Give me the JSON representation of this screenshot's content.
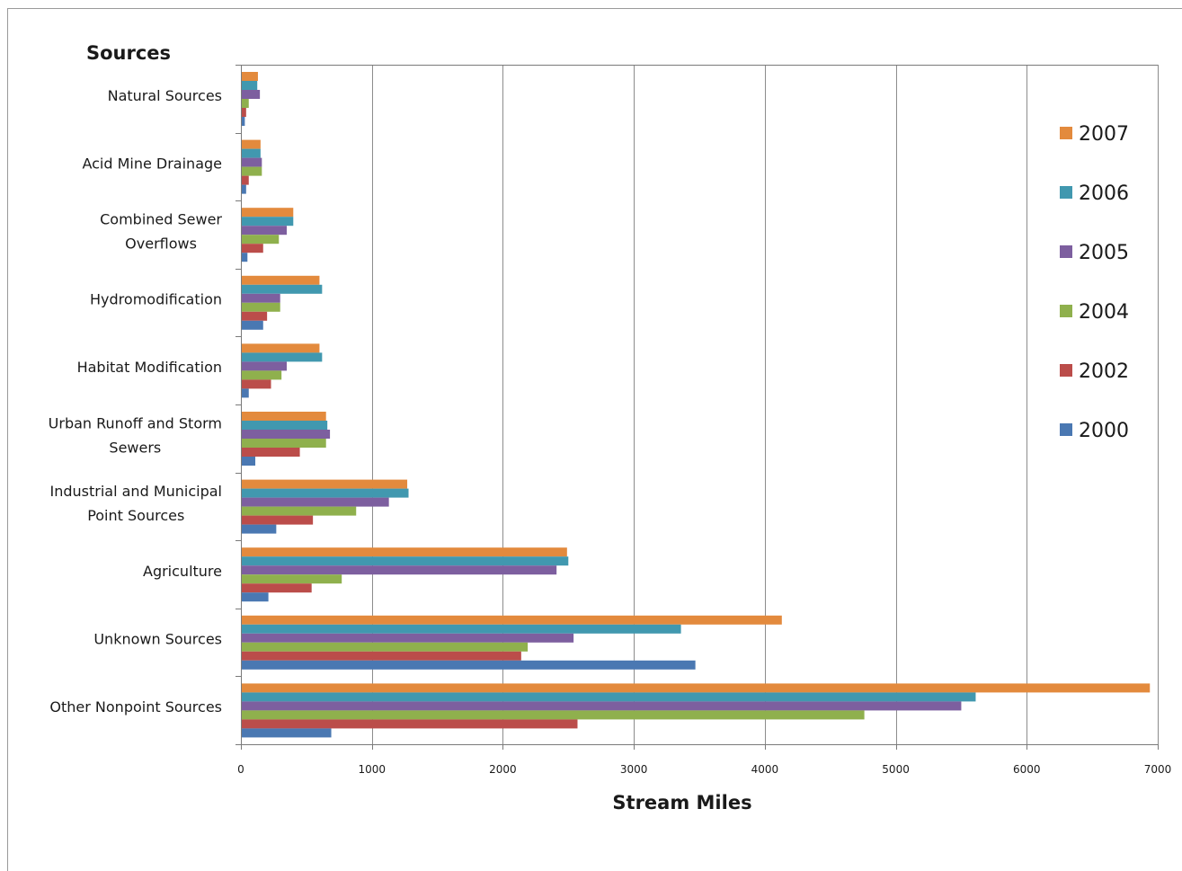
{
  "chart_data": {
    "type": "bar",
    "orientation": "horizontal",
    "ylabel": "Sources",
    "xlabel": "Stream Miles",
    "xlim": [
      0,
      7000
    ],
    "xticks": [
      "0",
      "1000",
      "2000",
      "3000",
      "4000",
      "5000",
      "6000",
      "7000"
    ],
    "grid": true,
    "legend_position": "right",
    "categories": [
      [
        "Natural Sources"
      ],
      [
        "Acid Mine Drainage"
      ],
      [
        "Combined Sewer",
        "Overflows"
      ],
      [
        "Hydromodification"
      ],
      [
        "Habitat Modification"
      ],
      [
        "Urban Runoff and Storm",
        "Sewers"
      ],
      [
        "Industrial and Municipal",
        "Point Sources"
      ],
      [
        "Agriculture"
      ],
      [
        "Unknown Sources"
      ],
      [
        "Other Nonpoint Sources"
      ]
    ],
    "series": [
      {
        "name": "2007",
        "color": "#e38a3d",
        "values": [
          130,
          150,
          400,
          600,
          600,
          650,
          1270,
          2490,
          4130,
          6940
        ]
      },
      {
        "name": "2006",
        "color": "#4198af",
        "values": [
          125,
          150,
          400,
          620,
          620,
          660,
          1280,
          2500,
          3360,
          5610
        ]
      },
      {
        "name": "2005",
        "color": "#7d5f9f",
        "values": [
          145,
          160,
          350,
          300,
          350,
          680,
          1130,
          2410,
          2540,
          5500
        ]
      },
      {
        "name": "2004",
        "color": "#8fb04d",
        "values": [
          60,
          160,
          290,
          300,
          310,
          650,
          880,
          770,
          2190,
          4760
        ]
      },
      {
        "name": "2002",
        "color": "#bb4d4a",
        "values": [
          40,
          60,
          170,
          200,
          230,
          450,
          550,
          540,
          2140,
          2570
        ]
      },
      {
        "name": "2000",
        "color": "#4a78b2",
        "values": [
          30,
          40,
          50,
          170,
          60,
          110,
          270,
          210,
          3470,
          690
        ]
      }
    ]
  }
}
